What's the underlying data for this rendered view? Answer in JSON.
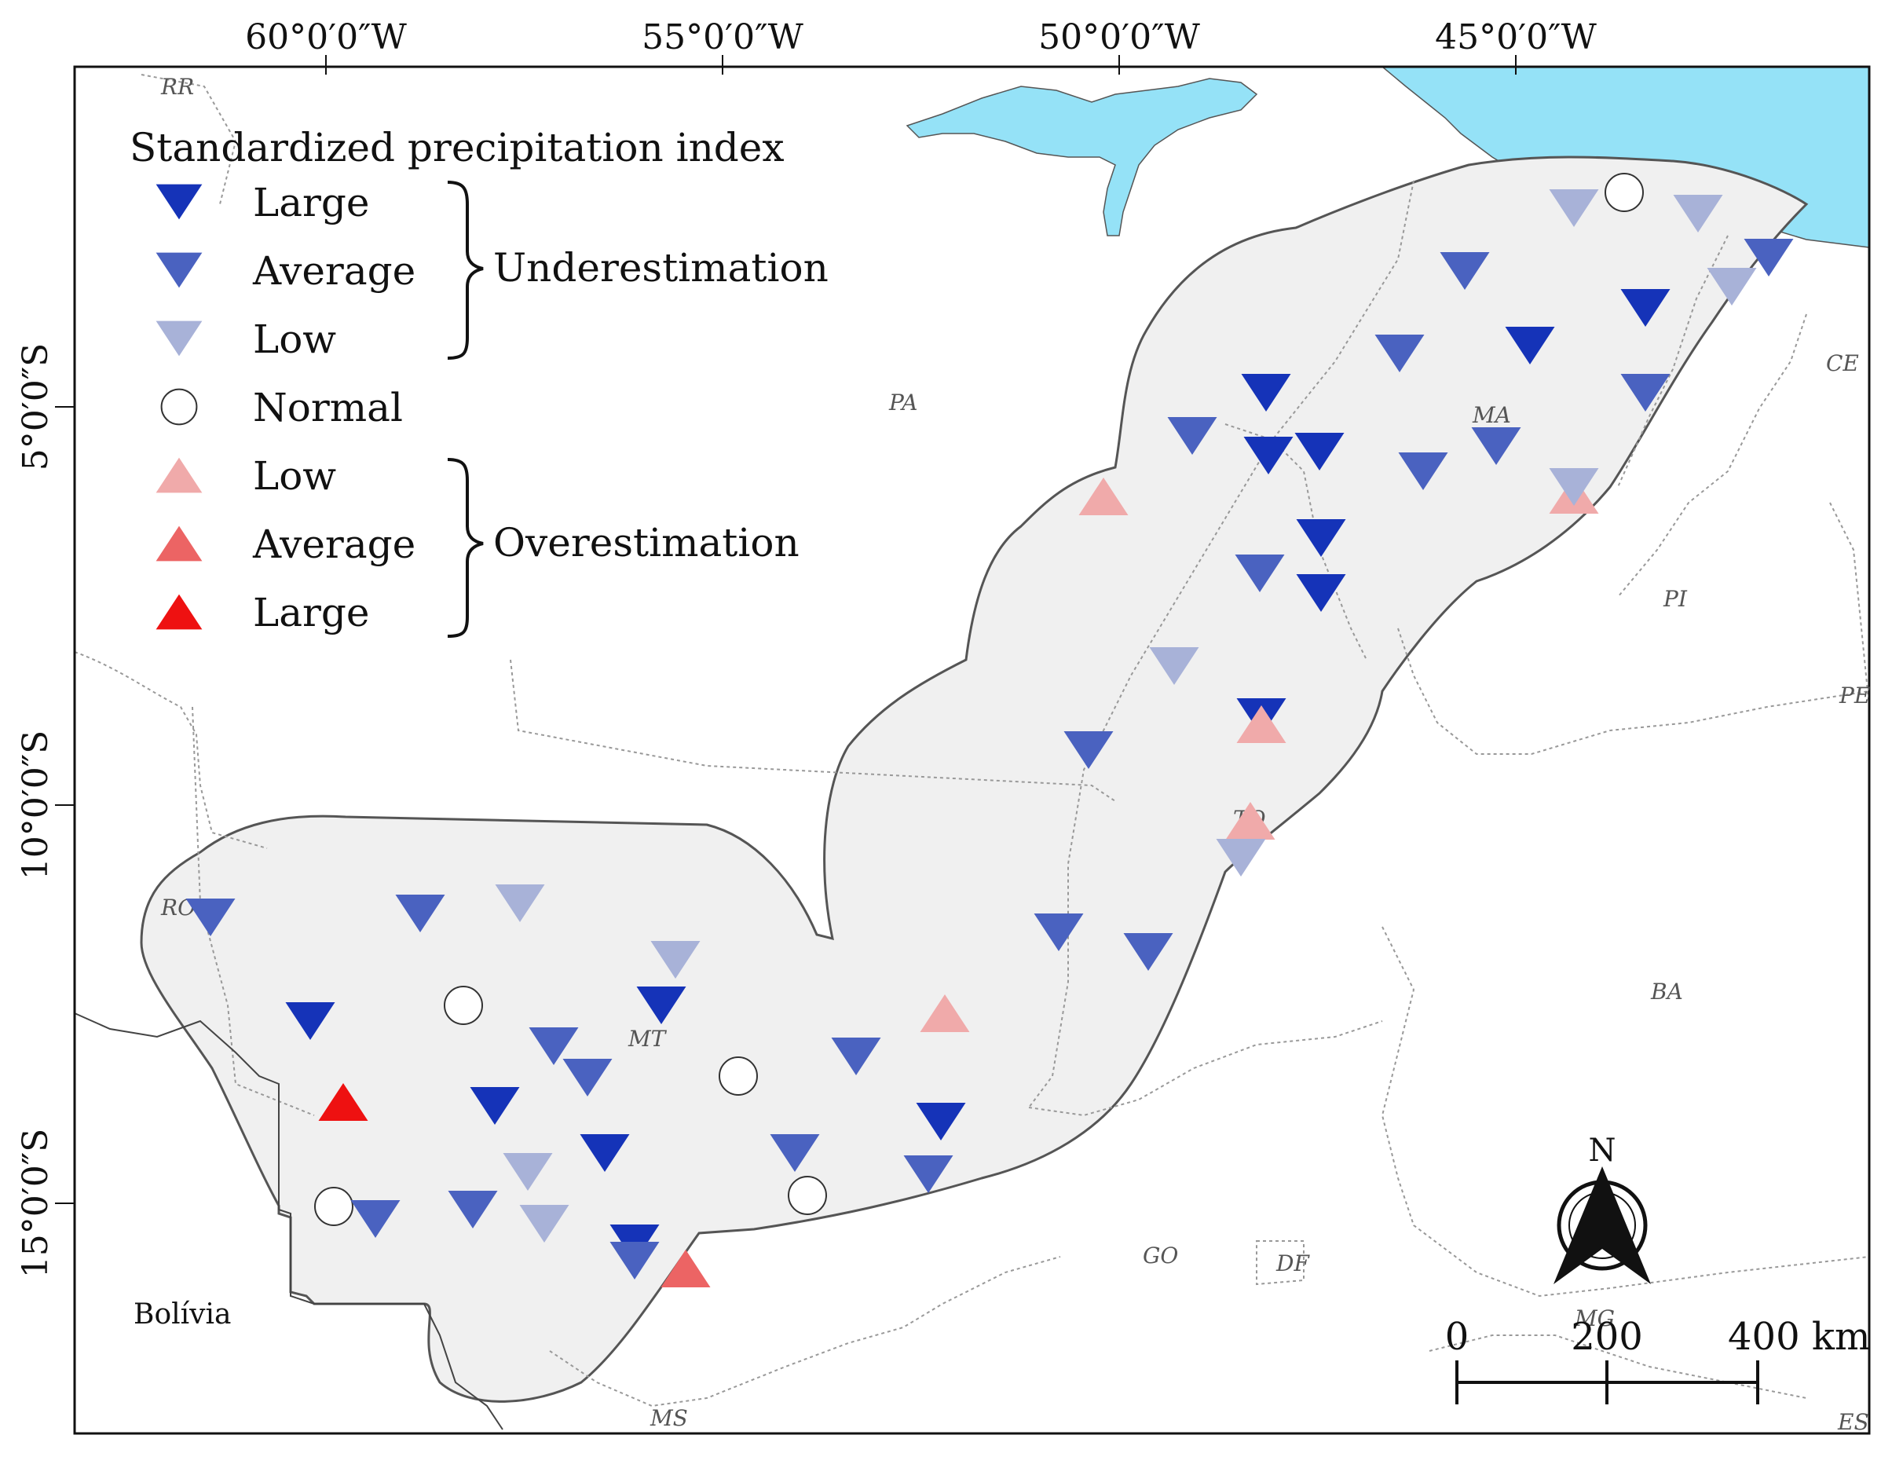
{
  "graticule": {
    "top": [
      "60°0′0″W",
      "55°0′0″W",
      "50°0′0″W",
      "45°0′0″W"
    ],
    "left": [
      "5°0′0″S",
      "10°0′0″S",
      "15°0′0″S"
    ]
  },
  "legend": {
    "title": "Standardized precipitation index",
    "items": [
      {
        "label": "Large",
        "symbol": "triangle-down",
        "color": "#1533b8"
      },
      {
        "label": "Average",
        "symbol": "triangle-down",
        "color": "#4a62c0"
      },
      {
        "label": "Low",
        "symbol": "triangle-down",
        "color": "#a8b2d8"
      },
      {
        "label": "Normal",
        "symbol": "circle",
        "color": "#ffffff"
      },
      {
        "label": "Low",
        "symbol": "triangle-up",
        "color": "#f0aaaa"
      },
      {
        "label": "Average",
        "symbol": "triangle-up",
        "color": "#ec6464"
      },
      {
        "label": "Large",
        "symbol": "triangle-up",
        "color": "#ee1111"
      }
    ],
    "group_under": "Underestimation",
    "group_over": "Overestimation"
  },
  "states": [
    "RR",
    "PA",
    "MA",
    "CE",
    "PI",
    "PE",
    "TO",
    "BA",
    "RO",
    "MT",
    "GO",
    "DF",
    "MG",
    "MS",
    "ES"
  ],
  "country": "Bolívia",
  "scale": {
    "labels": [
      "0",
      "200",
      "400 km"
    ]
  },
  "north": "N",
  "colors": {
    "ocean": "#95e2f7",
    "study_area": "#f0f0f0",
    "large_under": "#1533b8",
    "average_under": "#4a62c0",
    "low_under": "#a8b2d8",
    "low_over": "#f0aaaa",
    "average_over": "#ec6464",
    "large_over": "#ee1111"
  }
}
